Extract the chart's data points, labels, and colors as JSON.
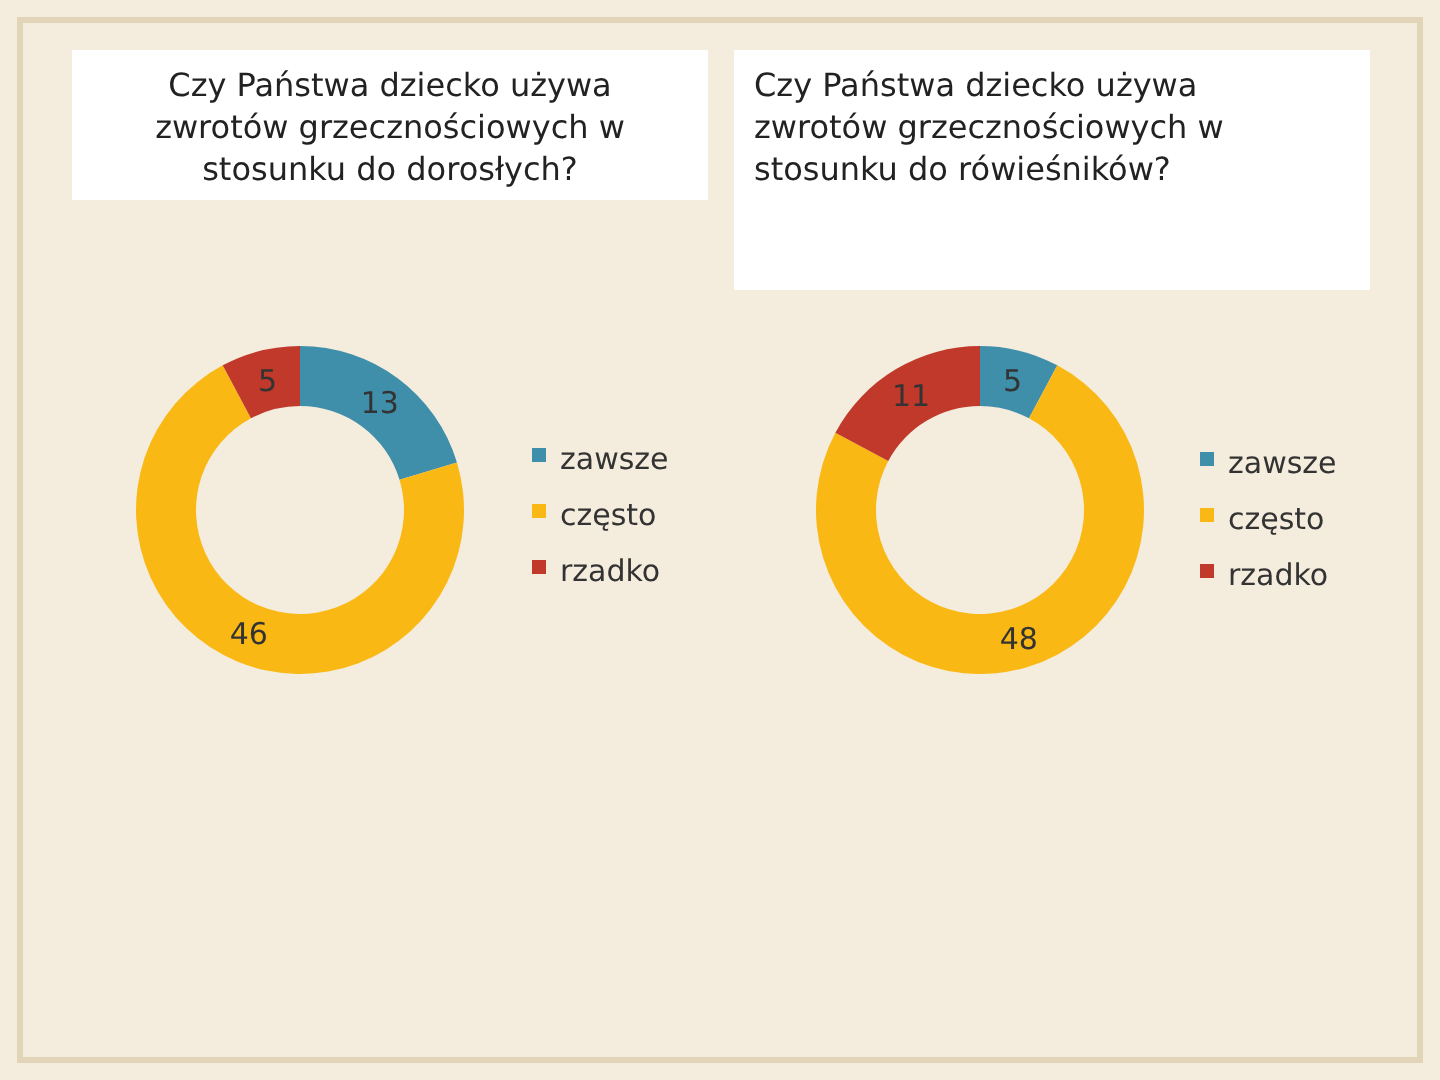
{
  "chart_data": [
    {
      "type": "donut",
      "title": "Czy Państwa dziecko używa zwrotów grzecznościowych w stosunku do dorosłych?",
      "categories": [
        "zawsze",
        "często",
        "rzadko"
      ],
      "values": [
        13,
        46,
        5
      ],
      "colors": [
        "#3f8fab",
        "#f9b814",
        "#c0392b"
      ],
      "data_labels": true,
      "legend": "right"
    },
    {
      "type": "donut",
      "title": "Czy Państwa dziecko używa zwrotów grzecznościowych w stosunku do rówieśników?",
      "categories": [
        "zawsze",
        "często",
        "rzadko"
      ],
      "values": [
        5,
        48,
        11
      ],
      "colors": [
        "#3f8fab",
        "#f9b814",
        "#c0392b"
      ],
      "data_labels": true,
      "legend": "right"
    }
  ]
}
